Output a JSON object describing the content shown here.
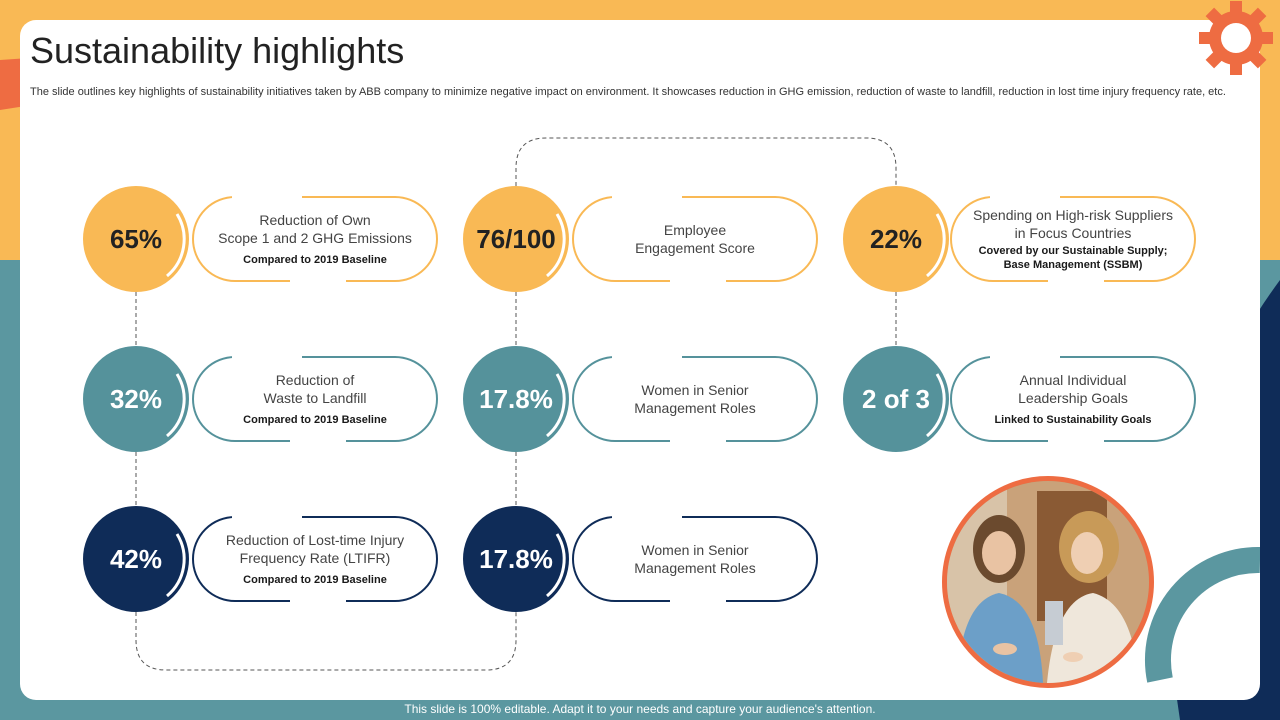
{
  "title": "Sustainability highlights",
  "description": "The slide outlines key highlights of sustainability initiatives taken by ABB  company to minimize negative impact on environment. It showcases reduction in GHG emission, reduction of waste to landfill, reduction in lost time injury frequency rate, etc.",
  "colors": {
    "yellow": "#f9b955",
    "teal": "#55929b",
    "navy": "#0f2c58",
    "orange": "#ee6c42"
  },
  "metrics": {
    "ghg": {
      "value": "65%",
      "line1": "Reduction of Own",
      "line2": "Scope 1 and 2 GHG Emissions",
      "sub1": "Compared to 2019 Baseline"
    },
    "engagement": {
      "value": "76/100",
      "line1": "Employee",
      "line2": "Engagement Score"
    },
    "suppliers": {
      "value": "22%",
      "line1": "Spending on High-risk Suppliers",
      "line2": "in Focus Countries",
      "sub1": "Covered by our Sustainable Supply;",
      "sub2": "Base Management (SSBM)"
    },
    "waste": {
      "value": "32%",
      "line1": "Reduction of",
      "line2": "Waste to Landfill",
      "sub1": "Compared to 2019 Baseline"
    },
    "women1": {
      "value": "17.8%",
      "line1": "Women in Senior",
      "line2": "Management Roles"
    },
    "leadership": {
      "value": "2 of 3",
      "line1": "Annual Individual",
      "line2": "Leadership Goals",
      "sub1": "Linked to Sustainability Goals"
    },
    "ltifr": {
      "value": "42%",
      "line1": "Reduction of Lost-time Injury",
      "line2": "Frequency Rate (LTIFR)",
      "sub1": "Compared to 2019 Baseline"
    },
    "women2": {
      "value": "17.8%",
      "line1": "Women in Senior",
      "line2": "Management Roles"
    }
  },
  "icons": {
    "gear": "gear-icon",
    "photo": "team-photo"
  },
  "footer": "This slide is 100% editable. Adapt it to your needs and capture your audience's attention."
}
